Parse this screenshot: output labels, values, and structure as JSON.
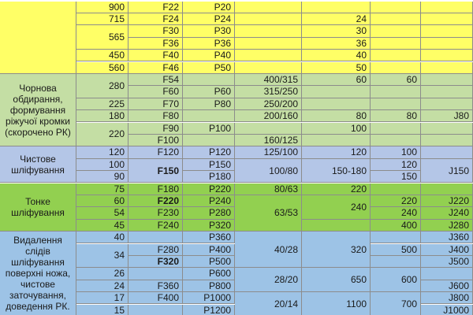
{
  "table": {
    "rows": [
      [
        null,
        "900",
        "F22",
        "P20",
        null,
        null,
        null,
        null
      ],
      [
        null,
        "715",
        "F24",
        "P24",
        null,
        "24",
        null,
        null
      ],
      [
        null,
        "565",
        "F30",
        "P30",
        null,
        "30",
        null,
        null
      ],
      [
        null,
        null,
        "F36",
        "P36",
        null,
        "36",
        null,
        null
      ],
      [
        null,
        "450",
        "F40",
        "P40",
        null,
        "40",
        null,
        null
      ],
      [
        null,
        "560",
        "F46",
        "P50",
        null,
        "50",
        null,
        null
      ],
      [
        "Чорнова обдирання, формування ріжучої кромки (скорочено РК)",
        "280",
        "F54",
        null,
        "400/315",
        "60",
        "60",
        null
      ],
      [
        null,
        null,
        "F60",
        "P60",
        "315/250",
        null,
        null,
        null
      ],
      [
        null,
        "225",
        "F70",
        "P80",
        "250/200",
        null,
        null,
        null
      ],
      [
        null,
        "180",
        "F80",
        null,
        "200/160",
        "80",
        "80",
        "J80"
      ],
      [
        null,
        "220",
        "F90",
        "P100",
        null,
        "100",
        null,
        null
      ],
      [
        null,
        null,
        "F100",
        null,
        "160/125",
        null,
        null,
        null
      ],
      [
        "Чистове шліфування",
        "120",
        "F120",
        "P120",
        "125/100",
        "120",
        "100",
        null
      ],
      [
        null,
        "100",
        "F150",
        "P150",
        "100/80",
        "150-180",
        "120",
        "J150"
      ],
      [
        null,
        "90",
        null,
        "P180",
        null,
        null,
        "150",
        null
      ],
      [
        "Тонке шліфування",
        "75",
        "F180",
        "P220",
        "80/63",
        "220",
        null,
        null
      ],
      [
        null,
        "60",
        "F220",
        "P240",
        "63/53",
        "240",
        "220",
        "J220"
      ],
      [
        null,
        "54",
        "F230",
        "P280",
        null,
        null,
        "240",
        "J240"
      ],
      [
        null,
        "45",
        "F240",
        "P320",
        null,
        null,
        "400",
        "J280"
      ],
      [
        "Видалення слідів шліфування поверхні ножа, чистове заточування, доведення РК.",
        "40",
        null,
        "P360",
        "40/28",
        "320",
        null,
        "J360"
      ],
      [
        null,
        "34",
        "F280",
        "P400",
        null,
        null,
        "500",
        "J400"
      ],
      [
        null,
        null,
        "F320",
        "P500",
        null,
        null,
        null,
        "J500"
      ],
      [
        null,
        "26",
        null,
        "P600",
        "28/20",
        "650",
        "600",
        null
      ],
      [
        null,
        "24",
        "F360",
        "P800",
        null,
        null,
        null,
        "J600"
      ],
      [
        null,
        "17",
        "F400",
        "P1000",
        "20/14",
        "1100",
        "700",
        "J800"
      ],
      [
        null,
        "15",
        null,
        "P1200",
        null,
        null,
        null,
        "J1000"
      ]
    ]
  }
}
